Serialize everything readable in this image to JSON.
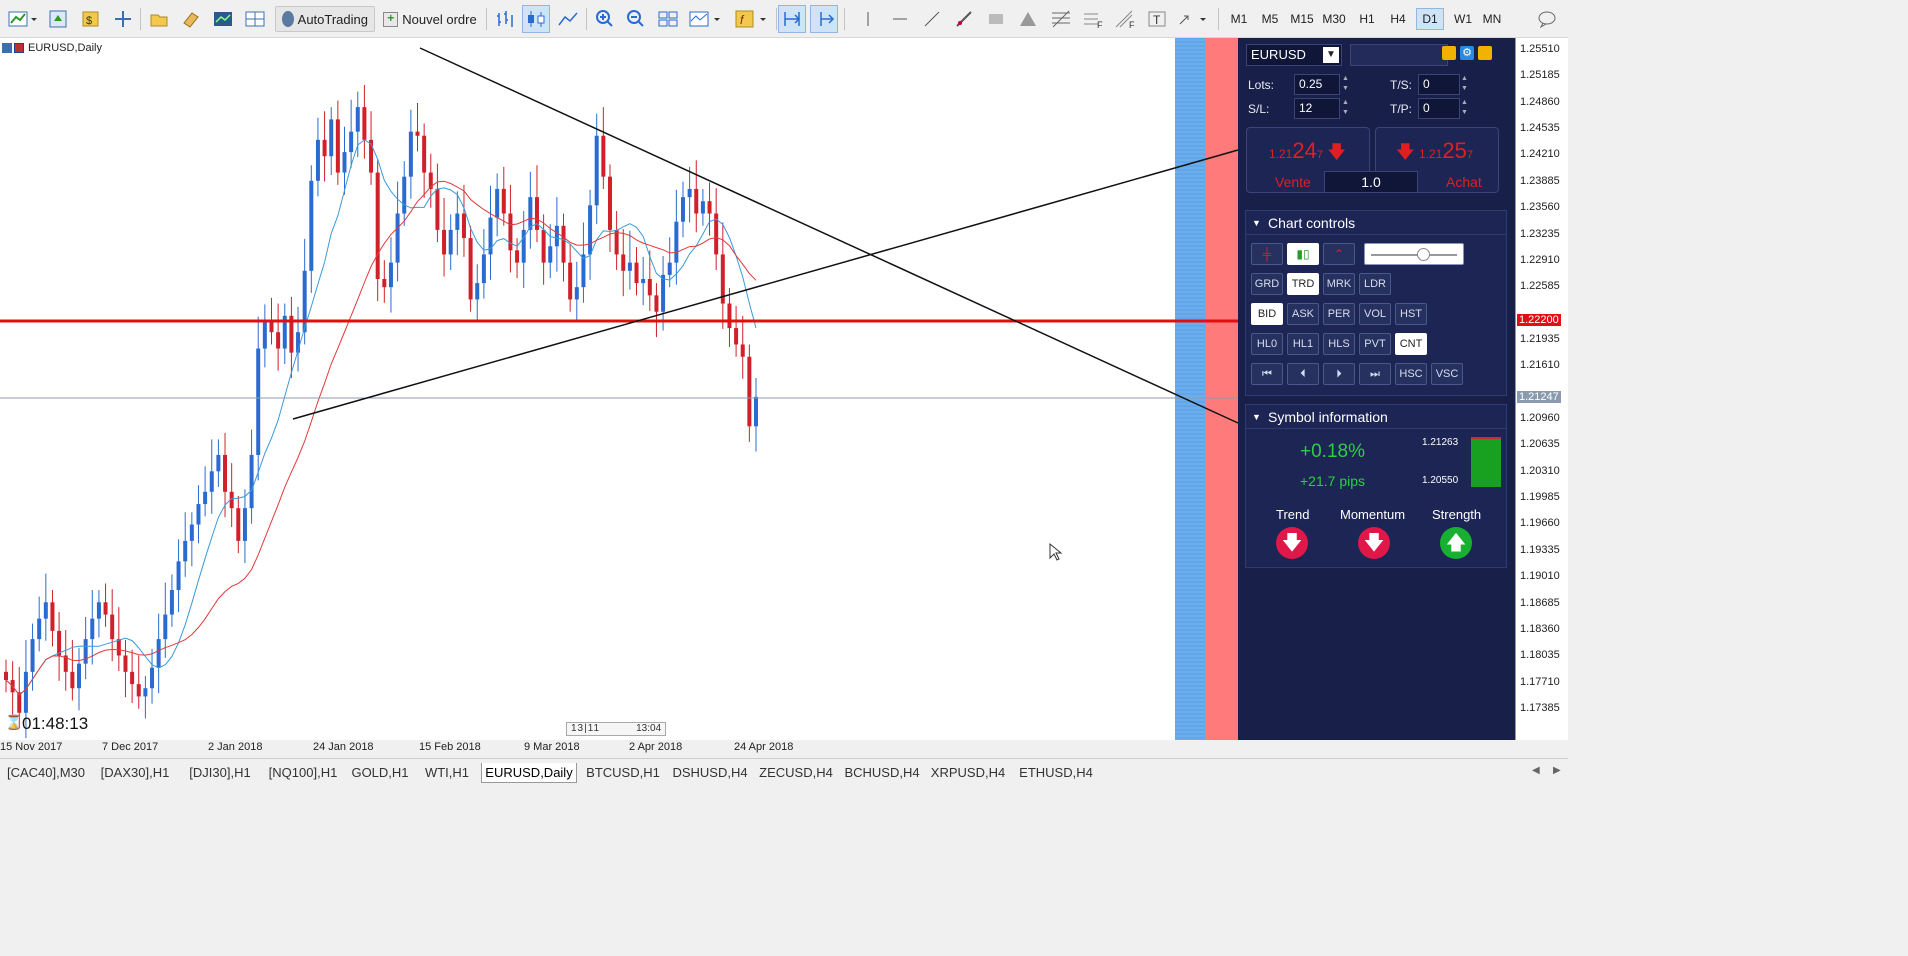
{
  "toolbar": {
    "autotrading_label": "AutoTrading",
    "new_order_label": "Nouvel ordre",
    "timeframes": [
      "M1",
      "M5",
      "M15",
      "M30",
      "H1",
      "H4",
      "D1",
      "W1",
      "MN"
    ],
    "active_timeframe": "D1"
  },
  "chart": {
    "title": "EURUSD,Daily",
    "countdown": "01:48:13",
    "x_labels": [
      "15 Nov 2017",
      "7 Dec 2017",
      "2 Jan 2018",
      "24 Jan 2018",
      "15 Feb 2018",
      "9 Mar 2018",
      "2 Apr 2018",
      "24 Apr 2018"
    ],
    "bottom_bar": "13:04",
    "bottom_bar_prefix": "13|11",
    "price_labels": [
      "1.25510",
      "1.25185",
      "1.24860",
      "1.24535",
      "1.24210",
      "1.23885",
      "1.23560",
      "1.23235",
      "1.22910",
      "1.22585",
      "1.22200",
      "1.21935",
      "1.21610",
      "1.21247",
      "1.20960",
      "1.20635",
      "1.20310",
      "1.19985",
      "1.19660",
      "1.19335",
      "1.19010",
      "1.18685",
      "1.18360",
      "1.18035",
      "1.17710",
      "1.17385"
    ],
    "hline_price": "1.22200",
    "last_price": "1.21247",
    "colors": {
      "bull": "#2a6bd1",
      "bear": "#d0202a",
      "ma_fast": "#3a9ad9",
      "ma_slow": "#e03a3a",
      "hline": "#e01010",
      "zone_blue": "#6aaef0",
      "zone_red": "#ff7a7a"
    }
  },
  "panel": {
    "symbol": "EURUSD",
    "lots_label": "Lots:",
    "lots_value": "0.25",
    "sl_label": "S/L:",
    "sl_value": "12",
    "ts_label": "T/S:",
    "ts_value": "0",
    "tp_label": "T/P:",
    "tp_value": "0",
    "sell": {
      "prefix": "1.21",
      "big": "24",
      "sup": "7",
      "label": "Vente"
    },
    "buy": {
      "prefix": "1.21",
      "big": "25",
      "sup": "7",
      "label": "Achat"
    },
    "volume": "1.0",
    "chart_controls": {
      "title": "Chart controls",
      "row2": [
        "GRD",
        "TRD",
        "MRK",
        "LDR"
      ],
      "row3": [
        "BID",
        "ASK",
        "PER",
        "VOL",
        "HST"
      ],
      "row4": [
        "HL0",
        "HL1",
        "HLS",
        "PVT",
        "CNT"
      ],
      "row5": [
        "HSC",
        "VSC"
      ]
    },
    "symbol_info": {
      "title": "Symbol information",
      "change_pct": "+0.18%",
      "change_pips": "+21.7 pips",
      "high": "1.21263",
      "low": "1.20550",
      "trend_label": "Trend",
      "momentum_label": "Momentum",
      "strength_label": "Strength"
    }
  },
  "tabs": [
    "[CAC40],M30",
    "[DAX30],H1",
    "[DJI30],H1",
    "[NQ100],H1",
    "GOLD,H1",
    "WTI,H1",
    "EURUSD,Daily",
    "BTCUSD,H1",
    "DSHUSD,H4",
    "ZECUSD,H4",
    "BCHUSD,H4",
    "XRPUSD,H4",
    "ETHUSD,H4"
  ],
  "active_tab": "EURUSD,Daily"
}
